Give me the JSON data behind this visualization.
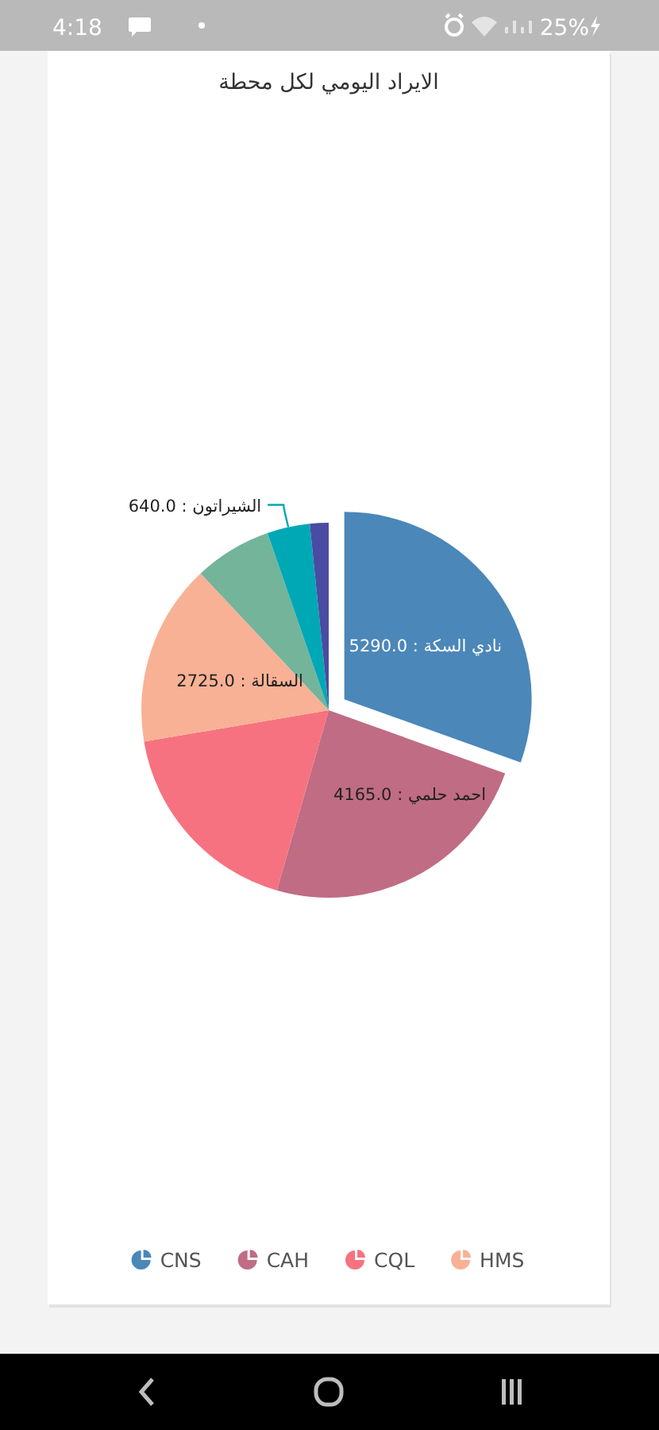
{
  "chart_data": {
    "type": "pie",
    "title": "الايراد اليومي لكل محطة",
    "categories": [
      "CNS",
      "CAH",
      "CQL",
      "HMS",
      null,
      null,
      null
    ],
    "values": [
      5290,
      4165,
      3100,
      2725,
      1160,
      640,
      280
    ],
    "colors": [
      "#4b87b9",
      "#c06c84",
      "#f67280",
      "#f8b195",
      "#74b49b",
      "#00a8b5",
      "#494ca2"
    ],
    "value_labels": [
      "نادي السكة : 5290.0",
      "احمد حلمي : 4165.0",
      null,
      "السقالة : 2725.0",
      null,
      "الشيراتون : 640.0",
      null
    ],
    "legend": "bottom",
    "annotations": [
      "4:18",
      "25%"
    ]
  }
}
